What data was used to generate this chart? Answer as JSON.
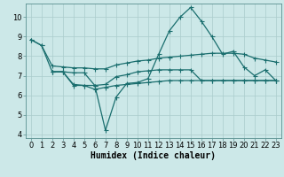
{
  "bg_color": "#cce8e8",
  "grid_color": "#aacccc",
  "line_color": "#1a6e6e",
  "xlabel": "Humidex (Indice chaleur)",
  "xlabel_fontsize": 7,
  "tick_fontsize": 6,
  "ylim": [
    3.8,
    10.7
  ],
  "xlim": [
    -0.5,
    23.5
  ],
  "yticks": [
    4,
    5,
    6,
    7,
    8,
    9,
    10
  ],
  "xticks": [
    0,
    1,
    2,
    3,
    4,
    5,
    6,
    7,
    8,
    9,
    10,
    11,
    12,
    13,
    14,
    15,
    16,
    17,
    18,
    19,
    20,
    21,
    22,
    23
  ],
  "line1_x": [
    0,
    1,
    2,
    3,
    4,
    5,
    6,
    7,
    8,
    9,
    10,
    11,
    12,
    13,
    14,
    15,
    16,
    17,
    18,
    19,
    20,
    21,
    22,
    23
  ],
  "line1_y": [
    8.85,
    8.55,
    7.2,
    7.2,
    7.15,
    7.15,
    6.5,
    4.2,
    5.9,
    6.6,
    6.65,
    6.85,
    8.1,
    9.3,
    10.0,
    10.5,
    9.8,
    9.0,
    8.1,
    8.25,
    7.45,
    7.0,
    7.3,
    6.75
  ],
  "line2_x": [
    0,
    1,
    2,
    3,
    4,
    5,
    6,
    7,
    8,
    9,
    10,
    11,
    12,
    13,
    14,
    15,
    16,
    17,
    18,
    19,
    20,
    21,
    22,
    23
  ],
  "line2_y": [
    8.85,
    8.55,
    7.5,
    7.45,
    7.4,
    7.4,
    7.35,
    7.35,
    7.55,
    7.65,
    7.75,
    7.8,
    7.9,
    7.95,
    8.0,
    8.05,
    8.1,
    8.15,
    8.15,
    8.15,
    8.1,
    7.9,
    7.8,
    7.7
  ],
  "line3_x": [
    2,
    3,
    4,
    5,
    6,
    7,
    8,
    9,
    10,
    11,
    12,
    13,
    14,
    15,
    16,
    17,
    18,
    19,
    20,
    21,
    22,
    23
  ],
  "line3_y": [
    7.2,
    7.2,
    6.5,
    6.5,
    6.5,
    6.55,
    6.95,
    7.05,
    7.2,
    7.25,
    7.3,
    7.3,
    7.3,
    7.3,
    6.75,
    6.75,
    6.75,
    6.75,
    6.75,
    6.75,
    6.75,
    6.75
  ],
  "line4_x": [
    2,
    3,
    4,
    5,
    6,
    7,
    8,
    9,
    10,
    11,
    12,
    13,
    14,
    15,
    16,
    17,
    18,
    19,
    20,
    21,
    22,
    23
  ],
  "line4_y": [
    7.2,
    7.2,
    6.55,
    6.5,
    6.3,
    6.4,
    6.5,
    6.55,
    6.6,
    6.65,
    6.7,
    6.75,
    6.75,
    6.75,
    6.75,
    6.75,
    6.75,
    6.75,
    6.75,
    6.75,
    6.75,
    6.75
  ]
}
